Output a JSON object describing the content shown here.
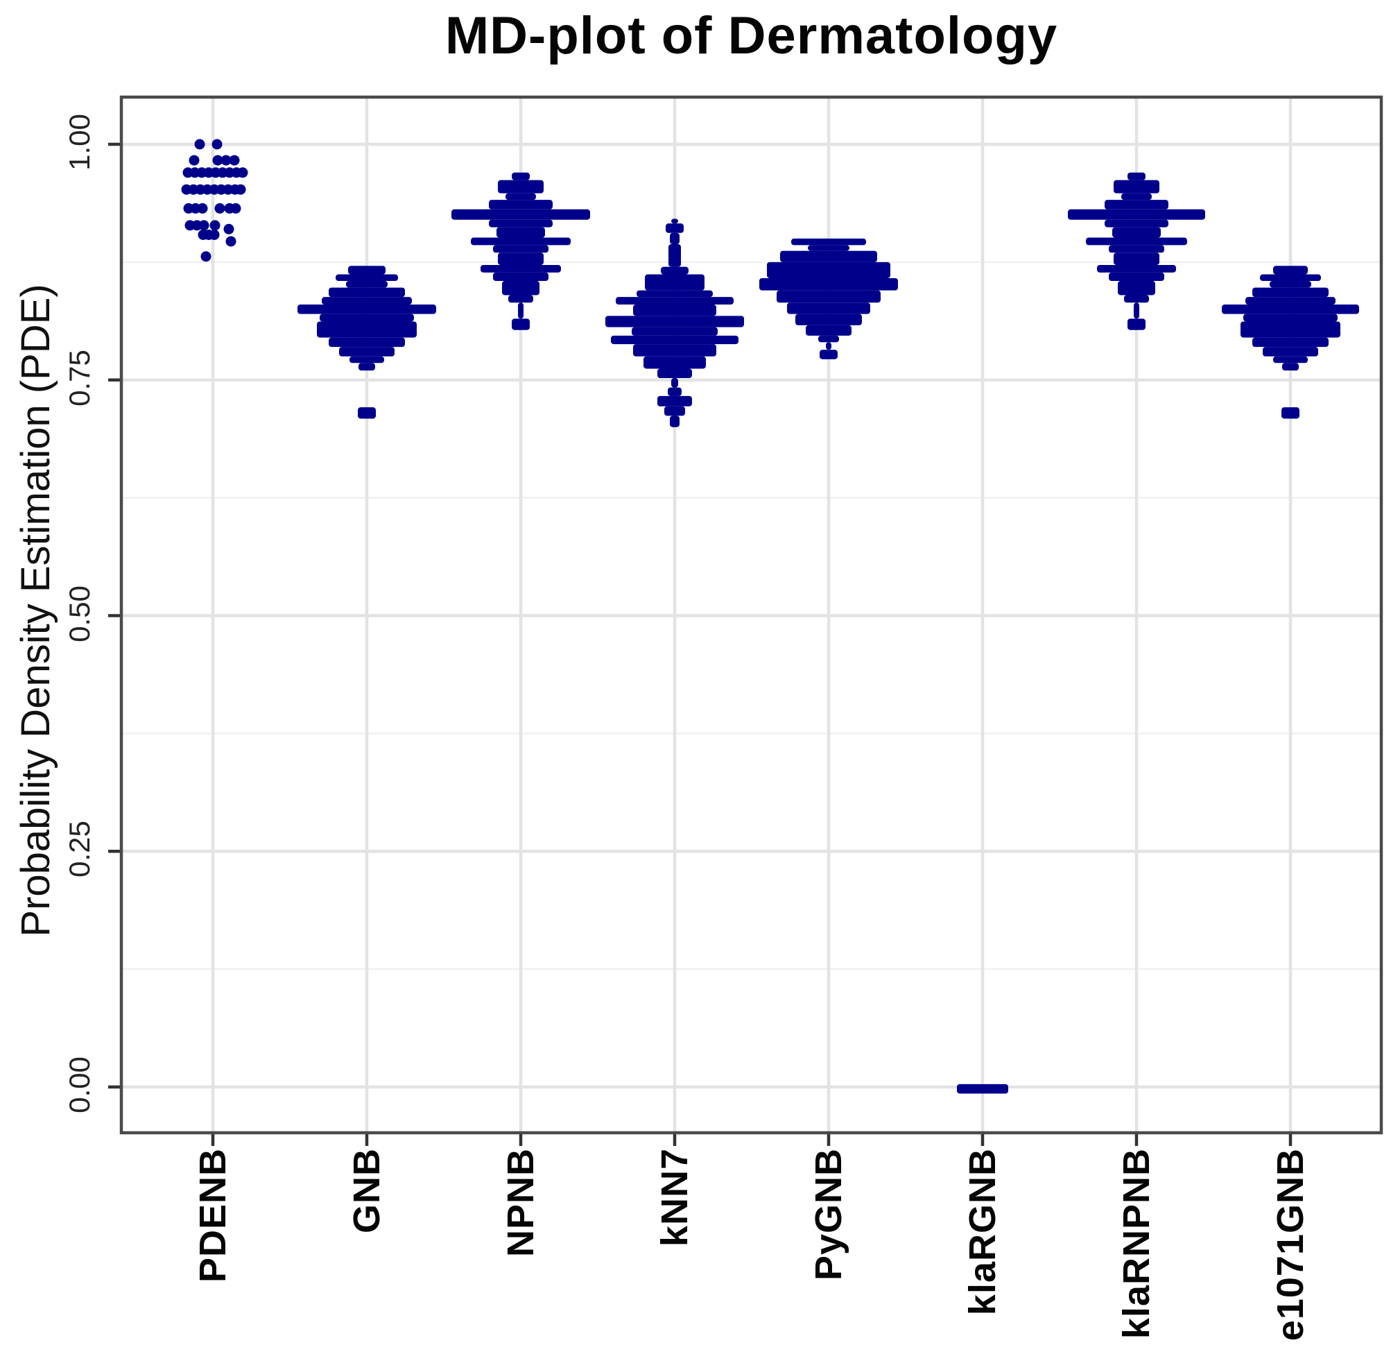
{
  "title": "MD-plot of Dermatology",
  "axes": {
    "ylabel": "Probability Density Estimation (PDE)",
    "ytick_labels": [
      "1.00",
      "0.75",
      "0.50",
      "0.25",
      "0.00"
    ]
  },
  "colors": {
    "violin_fill": "#00008B",
    "major_grid": "#e3e3e3",
    "minor_grid": "#f0f0f0",
    "panel_border": "#4a4a4a",
    "tick_mark": "#333333",
    "background": "#ffffff"
  },
  "chart_data": {
    "type": "violin",
    "subtype": "MD-plot (mirrored density plot)",
    "title": "MD-plot of Dermatology",
    "xlabel": "",
    "ylabel": "Probability Density Estimation (PDE)",
    "categories": [
      "PDENB",
      "GNB",
      "NPNB",
      "kNN7",
      "PyGNB",
      "klaRGNB",
      "klaRNPNB",
      "e1071GNB"
    ],
    "ylim": [
      -0.05,
      1.05
    ],
    "ytick_values": [
      1.0,
      0.75,
      0.5,
      0.25,
      0.0
    ],
    "yminor_values": [
      0.875,
      0.625,
      0.375,
      0.125
    ],
    "grid": "on",
    "legend": "none",
    "violins": [
      {
        "name": "PDENB",
        "style": "points",
        "summary": "jittered points clustered between 0.88 and 1.00",
        "points": [
          [
            -19,
            1.0
          ],
          [
            6,
            1.0
          ],
          [
            -27,
            0.983
          ],
          [
            7,
            0.983
          ],
          [
            19,
            0.983
          ],
          [
            31,
            0.983
          ],
          [
            -36,
            0.97
          ],
          [
            -26,
            0.97
          ],
          [
            -16,
            0.97
          ],
          [
            -6,
            0.97
          ],
          [
            4,
            0.97
          ],
          [
            14,
            0.97
          ],
          [
            24,
            0.97
          ],
          [
            34,
            0.97
          ],
          [
            43,
            0.97
          ],
          [
            -38,
            0.952
          ],
          [
            -28,
            0.952
          ],
          [
            -18,
            0.952
          ],
          [
            -8,
            0.952
          ],
          [
            2,
            0.952
          ],
          [
            12,
            0.952
          ],
          [
            22,
            0.952
          ],
          [
            32,
            0.952
          ],
          [
            40,
            0.952
          ],
          [
            -35,
            0.932
          ],
          [
            -25,
            0.932
          ],
          [
            -15,
            0.932
          ],
          [
            10,
            0.932
          ],
          [
            24,
            0.932
          ],
          [
            33,
            0.932
          ],
          [
            -33,
            0.914
          ],
          [
            -23,
            0.914
          ],
          [
            -13,
            0.914
          ],
          [
            3,
            0.914
          ],
          [
            23,
            0.91
          ],
          [
            26,
            0.897
          ],
          [
            -14,
            0.904
          ],
          [
            -6,
            0.904
          ],
          [
            2,
            0.904
          ],
          [
            -10,
            0.881
          ]
        ]
      },
      {
        "name": "GNB",
        "style": "bands",
        "summary": "density mass 0.76-0.87, peak near 0.82-0.83, outlier dash near 0.715",
        "bands": [
          [
            0.871,
            0.862,
            27
          ],
          [
            0.862,
            0.855,
            45
          ],
          [
            0.855,
            0.848,
            30
          ],
          [
            0.848,
            0.838,
            55
          ],
          [
            0.838,
            0.83,
            65
          ],
          [
            0.83,
            0.82,
            100
          ],
          [
            0.82,
            0.812,
            68
          ],
          [
            0.812,
            0.795,
            72
          ],
          [
            0.795,
            0.785,
            55
          ],
          [
            0.785,
            0.775,
            40
          ],
          [
            0.775,
            0.768,
            25
          ],
          [
            0.768,
            0.76,
            12
          ],
          [
            0.721,
            0.709,
            13
          ]
        ]
      },
      {
        "name": "NPNB",
        "style": "bands",
        "summary": "density mass 0.83-0.97, peak spike near 0.925, outlier blob near 0.81",
        "bands": [
          [
            0.97,
            0.962,
            13
          ],
          [
            0.962,
            0.948,
            33
          ],
          [
            0.948,
            0.941,
            22
          ],
          [
            0.941,
            0.931,
            46
          ],
          [
            0.931,
            0.92,
            100
          ],
          [
            0.92,
            0.912,
            46
          ],
          [
            0.912,
            0.901,
            35
          ],
          [
            0.901,
            0.893,
            72
          ],
          [
            0.893,
            0.885,
            40
          ],
          [
            0.885,
            0.872,
            33
          ],
          [
            0.872,
            0.864,
            58
          ],
          [
            0.864,
            0.855,
            40
          ],
          [
            0.855,
            0.84,
            27
          ],
          [
            0.84,
            0.832,
            18
          ],
          [
            0.832,
            0.815,
            4
          ],
          [
            0.815,
            0.803,
            13
          ]
        ]
      },
      {
        "name": "kNN7",
        "style": "bands",
        "summary": "density mass 0.70-0.92, peak spikes near 0.81, lower diamond near 0.72",
        "bands": [
          [
            0.921,
            0.916,
            5
          ],
          [
            0.916,
            0.906,
            13
          ],
          [
            0.906,
            0.894,
            7
          ],
          [
            0.894,
            0.87,
            9
          ],
          [
            0.87,
            0.862,
            20
          ],
          [
            0.862,
            0.845,
            43
          ],
          [
            0.845,
            0.838,
            55
          ],
          [
            0.838,
            0.83,
            85
          ],
          [
            0.83,
            0.818,
            60
          ],
          [
            0.818,
            0.806,
            100
          ],
          [
            0.806,
            0.797,
            62
          ],
          [
            0.797,
            0.788,
            92
          ],
          [
            0.788,
            0.775,
            60
          ],
          [
            0.775,
            0.762,
            45
          ],
          [
            0.762,
            0.752,
            25
          ],
          [
            0.752,
            0.742,
            5
          ],
          [
            0.742,
            0.733,
            10
          ],
          [
            0.733,
            0.722,
            25
          ],
          [
            0.722,
            0.712,
            15
          ],
          [
            0.712,
            0.7,
            7
          ]
        ]
      },
      {
        "name": "PyGNB",
        "style": "bands",
        "summary": "density mass 0.79-0.90 with flat top at 0.90, peak near 0.85, outlier blob near 0.78",
        "bands": [
          [
            0.9,
            0.893,
            54
          ],
          [
            0.893,
            0.887,
            30
          ],
          [
            0.887,
            0.875,
            70
          ],
          [
            0.875,
            0.858,
            89
          ],
          [
            0.858,
            0.845,
            100
          ],
          [
            0.845,
            0.832,
            75
          ],
          [
            0.832,
            0.82,
            60
          ],
          [
            0.82,
            0.808,
            48
          ],
          [
            0.808,
            0.797,
            33
          ],
          [
            0.797,
            0.79,
            15
          ],
          [
            0.79,
            0.782,
            4
          ],
          [
            0.782,
            0.772,
            13
          ]
        ]
      },
      {
        "name": "klaRGNB",
        "style": "bands",
        "summary": "all mass collapsed in a flat dash at 0.00",
        "bands": [
          [
            0.003,
            -0.007,
            37
          ]
        ]
      },
      {
        "name": "klaRNPNB",
        "style": "bands",
        "summary": "density mass 0.83-0.97, peak spike near 0.925, outlier blob near 0.81 (mirrors NPNB)",
        "bands": [
          [
            0.97,
            0.962,
            13
          ],
          [
            0.962,
            0.948,
            33
          ],
          [
            0.948,
            0.941,
            22
          ],
          [
            0.941,
            0.931,
            46
          ],
          [
            0.931,
            0.92,
            99
          ],
          [
            0.92,
            0.912,
            46
          ],
          [
            0.912,
            0.901,
            35
          ],
          [
            0.901,
            0.893,
            73
          ],
          [
            0.893,
            0.885,
            40
          ],
          [
            0.885,
            0.872,
            33
          ],
          [
            0.872,
            0.864,
            57
          ],
          [
            0.864,
            0.855,
            40
          ],
          [
            0.855,
            0.84,
            27
          ],
          [
            0.84,
            0.832,
            18
          ],
          [
            0.832,
            0.815,
            4
          ],
          [
            0.815,
            0.803,
            13
          ]
        ]
      },
      {
        "name": "e1071GNB",
        "style": "bands",
        "summary": "density mass 0.76-0.87, peak near 0.82-0.83, outlier dash near 0.715 (mirrors GNB)",
        "bands": [
          [
            0.871,
            0.862,
            25
          ],
          [
            0.862,
            0.855,
            44
          ],
          [
            0.855,
            0.848,
            30
          ],
          [
            0.848,
            0.838,
            55
          ],
          [
            0.838,
            0.83,
            65
          ],
          [
            0.83,
            0.82,
            99
          ],
          [
            0.82,
            0.812,
            68
          ],
          [
            0.812,
            0.795,
            72
          ],
          [
            0.795,
            0.785,
            55
          ],
          [
            0.785,
            0.775,
            40
          ],
          [
            0.775,
            0.768,
            25
          ],
          [
            0.768,
            0.76,
            12
          ],
          [
            0.721,
            0.709,
            13
          ]
        ]
      }
    ]
  }
}
